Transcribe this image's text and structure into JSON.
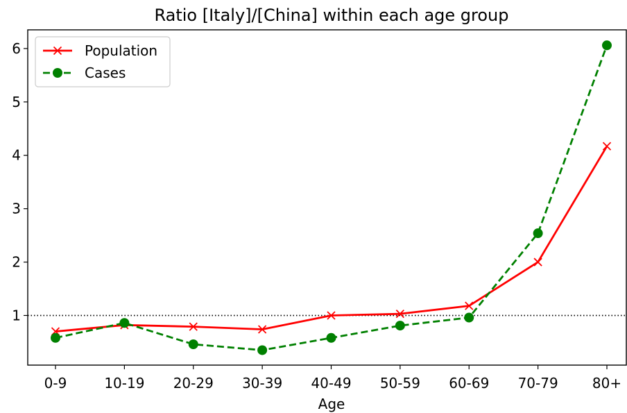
{
  "chart_data": {
    "type": "line",
    "title": "Ratio [Italy]/[China] within each age group",
    "xlabel": "Age",
    "ylabel": "",
    "categories": [
      "0-9",
      "10-19",
      "20-29",
      "30-39",
      "40-49",
      "50-59",
      "60-69",
      "70-79",
      "80+"
    ],
    "yticks": [
      "1",
      "2",
      "3",
      "4",
      "5",
      "6"
    ],
    "ylim": [
      0.07,
      6.35
    ],
    "reference_line": {
      "y": 1,
      "style": "dotted",
      "color": "#000000"
    },
    "legend_position": "top-left",
    "grid": false,
    "series": [
      {
        "name": "Population",
        "color": "#ff0000",
        "line_style": "solid",
        "marker": "x",
        "values": [
          0.7,
          0.82,
          0.79,
          0.74,
          1.0,
          1.03,
          1.18,
          2.0,
          4.17
        ]
      },
      {
        "name": "Cases",
        "color": "#008000",
        "line_style": "dashed",
        "marker": "circle",
        "values": [
          0.58,
          0.86,
          0.46,
          0.35,
          0.58,
          0.81,
          0.96,
          2.54,
          6.06
        ]
      }
    ]
  }
}
